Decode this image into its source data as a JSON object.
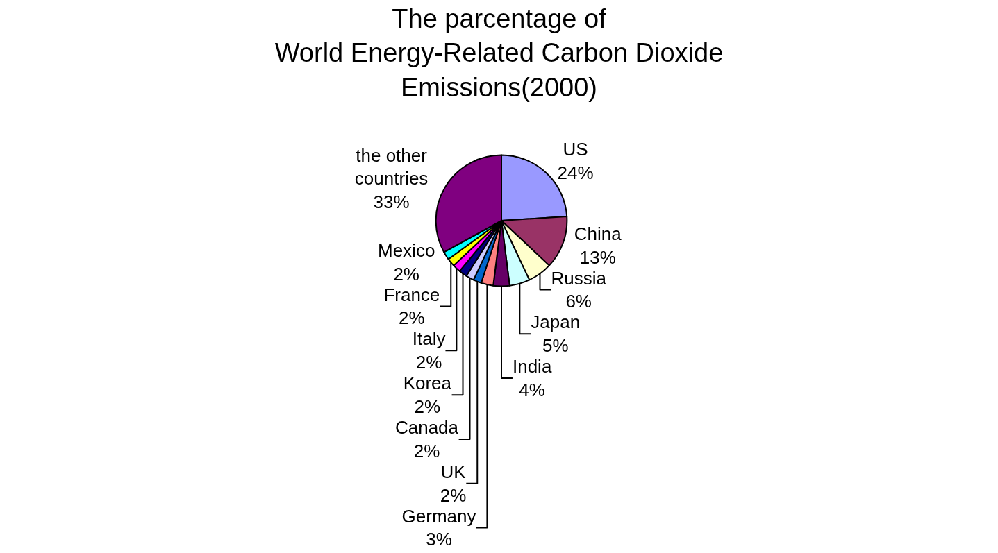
{
  "chart_data": {
    "type": "pie",
    "title": "The parcentage of\nWorld Energy-Related Carbon Dioxide\nEmissions(2000)",
    "categories": [
      "US",
      "China",
      "Russia",
      "Japan",
      "India",
      "Germany",
      "UK",
      "Canada",
      "Korea",
      "Italy",
      "France",
      "Mexico",
      "the other\ncountries"
    ],
    "values": [
      24,
      13,
      6,
      5,
      4,
      3,
      2,
      2,
      2,
      2,
      2,
      2,
      33
    ],
    "value_labels": [
      "24%",
      "13%",
      "6%",
      "5%",
      "4%",
      "3%",
      "2%",
      "2%",
      "2%",
      "2%",
      "2%",
      "2%",
      "33%"
    ],
    "colors": [
      "#9999ff",
      "#993366",
      "#ffffcc",
      "#ccffff",
      "#660066",
      "#ff8080",
      "#0066cc",
      "#ccccff",
      "#000080",
      "#ff00ff",
      "#ffff00",
      "#00ffff",
      "#800080"
    ],
    "legend": false
  }
}
